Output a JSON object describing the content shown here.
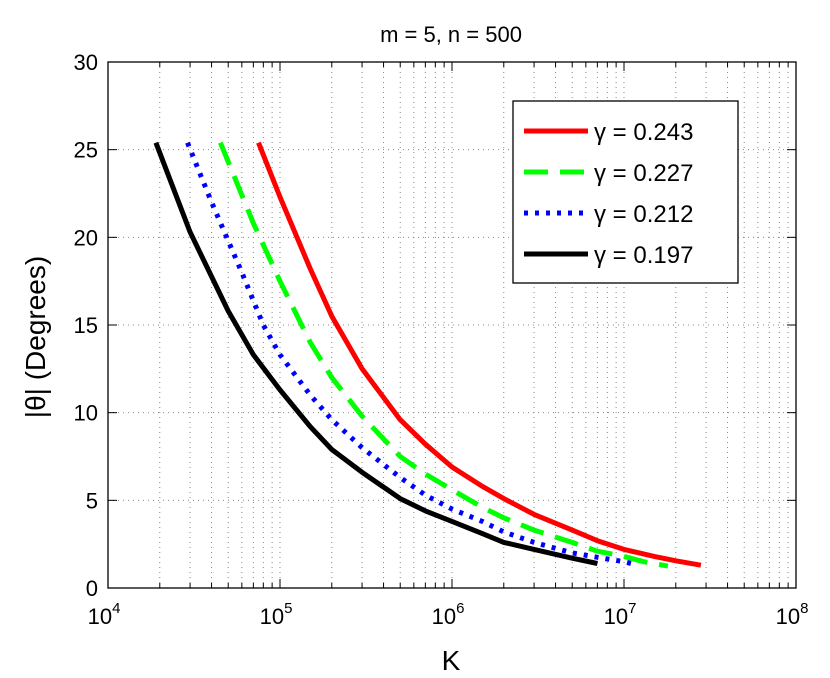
{
  "chart_data": {
    "type": "line",
    "title": "m = 5, n = 500",
    "xlabel": "K",
    "ylabel": "|θ| (Degrees)",
    "xscale": "log",
    "xlim": [
      10000,
      100000000
    ],
    "ylim": [
      0,
      30
    ],
    "grid": "on (dotted, including minor log grid)",
    "legend_position": "top-right",
    "x_tick_labels": [
      {
        "base": "10",
        "exp": "4"
      },
      {
        "base": "10",
        "exp": "5"
      },
      {
        "base": "10",
        "exp": "6"
      },
      {
        "base": "10",
        "exp": "7"
      },
      {
        "base": "10",
        "exp": "8"
      }
    ],
    "y_tick_labels": [
      "0",
      "5",
      "10",
      "15",
      "20",
      "25",
      "30"
    ],
    "series": [
      {
        "name": "γ = 0.243",
        "color": "#ff0000",
        "style": "solid",
        "x": [
          75000,
          100000,
          150000,
          200000,
          300000,
          500000,
          700000,
          1000000,
          1500000,
          2000000,
          3000000,
          5000000,
          7000000,
          10000000,
          15000000,
          20000000,
          28000000
        ],
        "y": [
          25.4,
          22.3,
          18.2,
          15.5,
          12.5,
          9.6,
          8.2,
          6.9,
          5.8,
          5.1,
          4.2,
          3.3,
          2.7,
          2.2,
          1.8,
          1.55,
          1.3
        ]
      },
      {
        "name": "γ = 0.227",
        "color": "#00ff00",
        "style": "dashed",
        "x": [
          45000,
          70000,
          100000,
          150000,
          200000,
          300000,
          500000,
          700000,
          1000000,
          1500000,
          2000000,
          3000000,
          5000000,
          7000000,
          10000000,
          13000000,
          18000000
        ],
        "y": [
          25.4,
          20.8,
          17.5,
          14.0,
          12.0,
          9.8,
          7.5,
          6.5,
          5.6,
          4.6,
          4.0,
          3.3,
          2.6,
          2.1,
          1.8,
          1.5,
          1.25
        ]
      },
      {
        "name": "γ = 0.212",
        "color": "#0000ff",
        "style": "dotted",
        "x": [
          29000,
          40000,
          60000,
          80000,
          100000,
          150000,
          200000,
          300000,
          500000,
          700000,
          1000000,
          1500000,
          2000000,
          3000000,
          5000000,
          7000000,
          10000000,
          11500000
        ],
        "y": [
          25.4,
          22.0,
          18.0,
          15.0,
          13.3,
          11.0,
          9.6,
          8.0,
          6.3,
          5.3,
          4.5,
          3.8,
          3.2,
          2.6,
          2.0,
          1.75,
          1.5,
          1.35
        ]
      },
      {
        "name": "γ = 0.197",
        "color": "#000000",
        "style": "solid",
        "x": [
          19000,
          30000,
          50000,
          70000,
          100000,
          150000,
          200000,
          300000,
          500000,
          700000,
          1000000,
          1500000,
          2000000,
          3000000,
          5000000,
          7000000
        ],
        "y": [
          25.4,
          20.3,
          15.8,
          13.3,
          11.3,
          9.2,
          7.9,
          6.6,
          5.1,
          4.4,
          3.8,
          3.1,
          2.6,
          2.2,
          1.7,
          1.4
        ]
      }
    ]
  }
}
